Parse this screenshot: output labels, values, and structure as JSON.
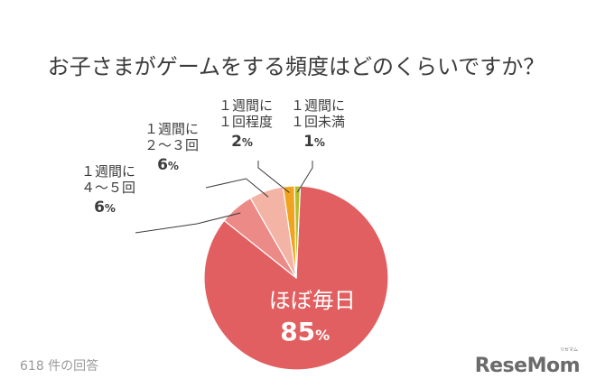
{
  "chart_data": {
    "type": "pie",
    "title": "お子さまがゲームをする頻度はどのくらいですか？",
    "unit": "%",
    "slices": [
      {
        "label_lines": [
          "ほぼ毎日"
        ],
        "value": 85,
        "color": "#e15f60"
      },
      {
        "label_lines": [
          "１週間に",
          "４〜５回"
        ],
        "value": 6,
        "color": "#eb8a87"
      },
      {
        "label_lines": [
          "１週間に",
          "２〜３回"
        ],
        "value": 6,
        "color": "#f3b4a6"
      },
      {
        "label_lines": [
          "１週間に",
          "１回程度"
        ],
        "value": 2,
        "color": "#f0a31e"
      },
      {
        "label_lines": [
          "１週間に",
          "１回未満"
        ],
        "value": 1,
        "color": "#b4bf28"
      }
    ]
  },
  "footnote": "618 件の回答",
  "logo": {
    "text": "ReseMom",
    "subtext": "リセマム"
  }
}
